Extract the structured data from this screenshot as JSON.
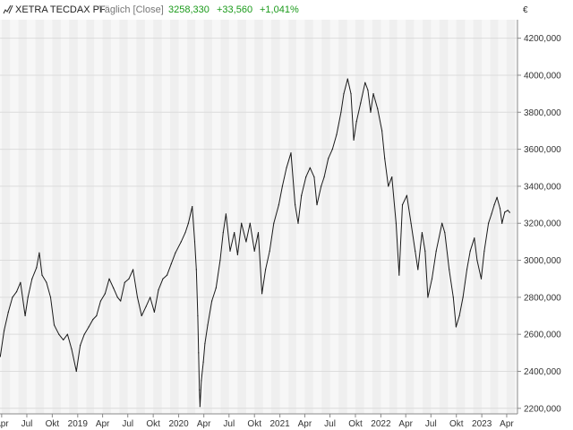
{
  "header": {
    "icon": "line-chart-icon",
    "instrument": "XETRA TECDAX PF",
    "mode": "Täglich [Close]",
    "last": "3258,330",
    "change": "+33,560",
    "change_pct": "+1,041%"
  },
  "colors": {
    "positive": "#1a9a1a",
    "line": "#1a1a1a",
    "band_light": "#f7f7f7",
    "band_dark": "#efefef",
    "grid": "#dcdcdc",
    "axis_text": "#333333",
    "header_grey": "#777777"
  },
  "chart_data": {
    "type": "line",
    "currency_label": "€",
    "xlabel": "",
    "ylabel": "",
    "ylim": [
      2170,
      4300
    ],
    "xlim": [
      "2018-03-26",
      "2023-05-10"
    ],
    "grid": true,
    "alternating_month_bands": true,
    "y_ticks": [
      2200,
      2400,
      2600,
      2800,
      3000,
      3200,
      3400,
      3600,
      3800,
      4000,
      4200
    ],
    "y_tick_labels": [
      "2200,000",
      "2400,000",
      "2600,000",
      "2800,000",
      "3000,000",
      "3200,000",
      "3400,000",
      "3600,000",
      "3800,000",
      "4000,000",
      "4200,000"
    ],
    "x_ticks": [
      "2018-04-01",
      "2018-07-01",
      "2018-10-01",
      "2019-01-01",
      "2019-04-01",
      "2019-07-01",
      "2019-10-01",
      "2020-01-01",
      "2020-04-01",
      "2020-07-01",
      "2020-10-01",
      "2021-01-01",
      "2021-04-01",
      "2021-07-01",
      "2021-10-01",
      "2022-01-01",
      "2022-04-01",
      "2022-07-01",
      "2022-10-01",
      "2023-01-01",
      "2023-04-01"
    ],
    "x_tick_labels": [
      "Apr",
      "Jul",
      "Okt",
      "2019",
      "Apr",
      "Jul",
      "Okt",
      "2020",
      "Apr",
      "Jul",
      "Okt",
      "2021",
      "Apr",
      "Jul",
      "Okt",
      "2022",
      "Apr",
      "Jul",
      "Okt",
      "2023",
      "Apr"
    ],
    "series": [
      {
        "name": "",
        "points": [
          [
            "2018-03-27",
            2480
          ],
          [
            "2018-04-10",
            2620
          ],
          [
            "2018-04-25",
            2720
          ],
          [
            "2018-05-10",
            2800
          ],
          [
            "2018-05-25",
            2830
          ],
          [
            "2018-06-08",
            2880
          ],
          [
            "2018-06-25",
            2700
          ],
          [
            "2018-07-05",
            2800
          ],
          [
            "2018-07-20",
            2900
          ],
          [
            "2018-08-05",
            2960
          ],
          [
            "2018-08-15",
            3040
          ],
          [
            "2018-08-25",
            2920
          ],
          [
            "2018-09-10",
            2880
          ],
          [
            "2018-09-25",
            2800
          ],
          [
            "2018-10-08",
            2650
          ],
          [
            "2018-10-25",
            2600
          ],
          [
            "2018-11-10",
            2570
          ],
          [
            "2018-11-25",
            2600
          ],
          [
            "2018-12-10",
            2520
          ],
          [
            "2018-12-27",
            2400
          ],
          [
            "2019-01-10",
            2540
          ],
          [
            "2019-01-25",
            2600
          ],
          [
            "2019-02-10",
            2640
          ],
          [
            "2019-02-25",
            2680
          ],
          [
            "2019-03-10",
            2700
          ],
          [
            "2019-03-25",
            2780
          ],
          [
            "2019-04-10",
            2820
          ],
          [
            "2019-04-25",
            2900
          ],
          [
            "2019-05-10",
            2850
          ],
          [
            "2019-05-25",
            2800
          ],
          [
            "2019-06-05",
            2780
          ],
          [
            "2019-06-20",
            2880
          ],
          [
            "2019-07-05",
            2900
          ],
          [
            "2019-07-20",
            2950
          ],
          [
            "2019-08-05",
            2800
          ],
          [
            "2019-08-20",
            2700
          ],
          [
            "2019-09-05",
            2750
          ],
          [
            "2019-09-20",
            2800
          ],
          [
            "2019-10-05",
            2720
          ],
          [
            "2019-10-20",
            2840
          ],
          [
            "2019-11-05",
            2900
          ],
          [
            "2019-11-20",
            2920
          ],
          [
            "2019-12-05",
            2980
          ],
          [
            "2019-12-20",
            3040
          ],
          [
            "2020-01-10",
            3100
          ],
          [
            "2020-01-25",
            3150
          ],
          [
            "2020-02-05",
            3200
          ],
          [
            "2020-02-19",
            3290
          ],
          [
            "2020-02-28",
            3100
          ],
          [
            "2020-03-05",
            2950
          ],
          [
            "2020-03-10",
            2700
          ],
          [
            "2020-03-13",
            2500
          ],
          [
            "2020-03-16",
            2300
          ],
          [
            "2020-03-18",
            2210
          ],
          [
            "2020-03-23",
            2350
          ],
          [
            "2020-03-30",
            2450
          ],
          [
            "2020-04-05",
            2550
          ],
          [
            "2020-04-15",
            2650
          ],
          [
            "2020-04-30",
            2780
          ],
          [
            "2020-05-15",
            2850
          ],
          [
            "2020-05-30",
            3000
          ],
          [
            "2020-06-10",
            3150
          ],
          [
            "2020-06-20",
            3250
          ],
          [
            "2020-07-05",
            3050
          ],
          [
            "2020-07-20",
            3150
          ],
          [
            "2020-08-01",
            3030
          ],
          [
            "2020-08-15",
            3200
          ],
          [
            "2020-09-01",
            3100
          ],
          [
            "2020-09-15",
            3200
          ],
          [
            "2020-10-01",
            3050
          ],
          [
            "2020-10-15",
            3150
          ],
          [
            "2020-10-28",
            2820
          ],
          [
            "2020-11-10",
            2950
          ],
          [
            "2020-11-25",
            3050
          ],
          [
            "2020-12-10",
            3200
          ],
          [
            "2020-12-28",
            3300
          ],
          [
            "2021-01-10",
            3400
          ],
          [
            "2021-01-25",
            3500
          ],
          [
            "2021-02-10",
            3580
          ],
          [
            "2021-02-25",
            3300
          ],
          [
            "2021-03-08",
            3200
          ],
          [
            "2021-03-20",
            3350
          ],
          [
            "2021-04-05",
            3450
          ],
          [
            "2021-04-20",
            3500
          ],
          [
            "2021-05-05",
            3450
          ],
          [
            "2021-05-15",
            3300
          ],
          [
            "2021-05-30",
            3400
          ],
          [
            "2021-06-10",
            3450
          ],
          [
            "2021-06-25",
            3550
          ],
          [
            "2021-07-10",
            3600
          ],
          [
            "2021-07-25",
            3680
          ],
          [
            "2021-08-10",
            3800
          ],
          [
            "2021-08-20",
            3900
          ],
          [
            "2021-09-03",
            3980
          ],
          [
            "2021-09-15",
            3900
          ],
          [
            "2021-09-25",
            3650
          ],
          [
            "2021-10-05",
            3750
          ],
          [
            "2021-10-20",
            3850
          ],
          [
            "2021-11-05",
            3960
          ],
          [
            "2021-11-15",
            3920
          ],
          [
            "2021-11-25",
            3800
          ],
          [
            "2021-12-05",
            3900
          ],
          [
            "2021-12-20",
            3820
          ],
          [
            "2022-01-05",
            3700
          ],
          [
            "2022-01-15",
            3550
          ],
          [
            "2022-01-28",
            3400
          ],
          [
            "2022-02-10",
            3450
          ],
          [
            "2022-02-25",
            3200
          ],
          [
            "2022-03-08",
            2920
          ],
          [
            "2022-03-20",
            3300
          ],
          [
            "2022-04-05",
            3350
          ],
          [
            "2022-04-20",
            3200
          ],
          [
            "2022-05-05",
            3050
          ],
          [
            "2022-05-15",
            2950
          ],
          [
            "2022-05-30",
            3150
          ],
          [
            "2022-06-10",
            3050
          ],
          [
            "2022-06-20",
            2800
          ],
          [
            "2022-07-05",
            2900
          ],
          [
            "2022-07-20",
            3050
          ],
          [
            "2022-08-10",
            3200
          ],
          [
            "2022-08-20",
            3150
          ],
          [
            "2022-09-05",
            2950
          ],
          [
            "2022-09-20",
            2800
          ],
          [
            "2022-09-30",
            2640
          ],
          [
            "2022-10-12",
            2700
          ],
          [
            "2022-10-25",
            2800
          ],
          [
            "2022-11-08",
            2950
          ],
          [
            "2022-11-20",
            3050
          ],
          [
            "2022-12-05",
            3120
          ],
          [
            "2022-12-15",
            3000
          ],
          [
            "2022-12-30",
            2900
          ],
          [
            "2023-01-10",
            3050
          ],
          [
            "2023-01-25",
            3200
          ],
          [
            "2023-02-05",
            3250
          ],
          [
            "2023-02-15",
            3300
          ],
          [
            "2023-02-25",
            3340
          ],
          [
            "2023-03-08",
            3280
          ],
          [
            "2023-03-15",
            3200
          ],
          [
            "2023-03-25",
            3260
          ],
          [
            "2023-04-05",
            3270
          ],
          [
            "2023-04-12",
            3258.33
          ]
        ]
      }
    ]
  }
}
